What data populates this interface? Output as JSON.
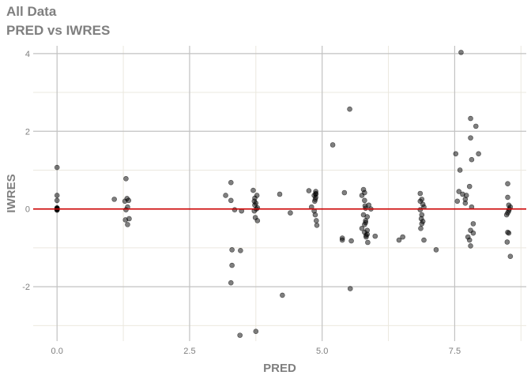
{
  "title": "All Data",
  "subtitle": "PRED vs IWRES",
  "chart_data": {
    "type": "scatter",
    "xlabel": "PRED",
    "ylabel": "IWRES",
    "xlim": [
      -0.45,
      8.85
    ],
    "ylim": [
      -3.4,
      4.2
    ],
    "x_ticks": [
      "0.0",
      "2.5",
      "5.0",
      "7.5"
    ],
    "y_ticks": [
      "-2",
      "0",
      "2",
      "4"
    ],
    "x_tick_values": [
      0,
      2.5,
      5,
      7.5
    ],
    "y_tick_values": [
      -2,
      0,
      2,
      4
    ],
    "reference_line": {
      "y": 0,
      "color": "#cc0000"
    },
    "grid": true,
    "point_color": "#000000",
    "point_alpha": 0.5,
    "x": [
      0,
      0,
      0,
      0,
      0,
      0,
      0,
      0,
      0,
      0,
      0,
      0,
      1.08,
      1.3,
      1.32,
      1.28,
      1.35,
      1.33,
      1.3,
      1.29,
      1.36,
      1.33,
      3.18,
      3.28,
      3.28,
      3.3,
      3.3,
      3.28,
      3.35,
      3.46,
      3.45,
      3.48,
      3.7,
      3.73,
      3.72,
      3.75,
      3.78,
      3.72,
      3.76,
      3.74,
      3.78,
      3.77,
      3.75,
      3.73,
      4.25,
      4.4,
      4.2,
      4.75,
      4.88,
      4.85,
      4.88,
      4.8,
      4.85,
      4.87,
      4.89,
      4.9,
      4.88,
      4.87,
      4.86,
      4.88,
      5.2,
      5.38,
      5.38,
      5.42,
      5.52,
      5.55,
      5.53,
      5.75,
      5.8,
      5.82,
      5.78,
      5.82,
      5.75,
      5.8,
      5.85,
      5.83,
      5.8,
      5.78,
      5.88,
      5.92,
      5.85,
      5.82,
      5.8,
      5.85,
      5.83,
      5.81,
      5.86,
      6.0,
      6.45,
      6.52,
      6.85,
      6.88,
      6.85,
      6.9,
      6.92,
      6.85,
      6.88,
      6.87,
      6.9,
      6.88,
      6.86,
      6.92,
      7.15,
      7.52,
      7.55,
      7.58,
      7.6,
      7.62,
      7.65,
      7.7,
      7.72,
      7.8,
      7.82,
      7.8,
      7.78,
      7.75,
      7.8,
      7.85,
      7.9,
      7.95,
      7.78,
      7.8,
      7.85,
      7.7,
      7.82,
      8.5,
      8.52,
      8.55,
      8.48,
      8.5,
      8.52,
      8.5,
      8.49,
      8.55,
      8.52,
      8.5,
      8.53
    ],
    "y": [
      1.07,
      0.35,
      0.22,
      0.02,
      0.0,
      -0.02,
      0.01,
      -0.01,
      0.03,
      0.0,
      0.01,
      -0.03,
      0.25,
      0.78,
      0.27,
      0.2,
      0.22,
      0.05,
      -0.02,
      -0.28,
      -0.25,
      -0.4,
      0.35,
      0.68,
      0.22,
      -1.05,
      -1.45,
      -1.9,
      -0.02,
      -1.07,
      -3.25,
      -0.05,
      0.48,
      0.28,
      0.2,
      0.15,
      0.03,
      -0.05,
      0.0,
      -0.22,
      -0.3,
      0.35,
      -3.15,
      0.1,
      -2.22,
      -0.1,
      0.38,
      0.47,
      0.45,
      0.35,
      0.3,
      0.05,
      -0.05,
      -0.15,
      -0.3,
      -0.42,
      0.4,
      0.25,
      0.2,
      0.38,
      1.65,
      -0.75,
      -0.8,
      0.42,
      2.57,
      -0.82,
      -2.05,
      0.35,
      0.22,
      0.02,
      -0.15,
      -0.3,
      -0.5,
      -0.6,
      -0.65,
      -0.72,
      0.42,
      0.5,
      0.1,
      0.0,
      -0.2,
      -0.35,
      -0.4,
      -0.55,
      -0.68,
      0.08,
      -0.86,
      -0.7,
      -0.8,
      -0.72,
      0.4,
      0.25,
      0.2,
      0.12,
      0.05,
      -0.02,
      -0.15,
      -0.25,
      -0.32,
      -0.38,
      -0.5,
      -0.8,
      -1.05,
      1.42,
      0.2,
      0.45,
      1.0,
      4.03,
      0.38,
      0.15,
      0.35,
      2.33,
      1.27,
      1.83,
      0.58,
      -0.72,
      -0.55,
      -0.62,
      2.13,
      1.42,
      -0.8,
      -0.95,
      -0.38,
      0.25,
      0.05,
      0.65,
      0.1,
      0.05,
      -0.15,
      -0.1,
      -0.05,
      -0.6,
      -0.85,
      -1.22,
      -0.62,
      0.3,
      0.0
    ]
  }
}
